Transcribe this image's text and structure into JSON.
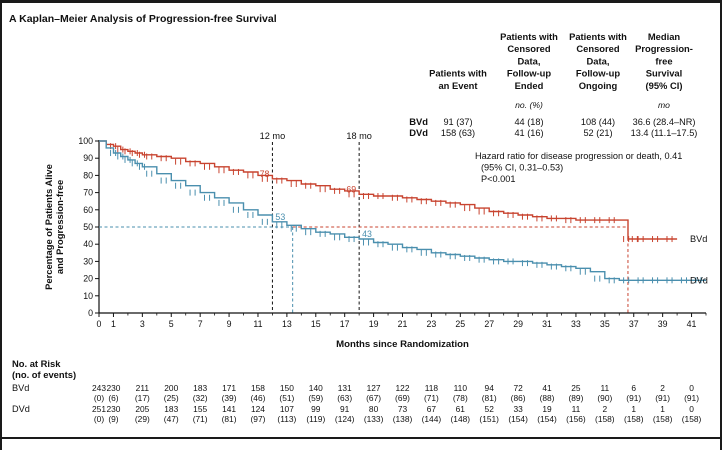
{
  "panel_title": "A  Kaplan–Meier Analysis of Progression-free Survival",
  "table": {
    "headers": [
      [
        "Patients with",
        "an Event"
      ],
      [
        "Patients with",
        "Censored",
        "Data,",
        "Follow-up",
        "Ended"
      ],
      [
        "Patients with",
        "Censored",
        "Data,",
        "Follow-up",
        "Ongoing"
      ],
      [
        "Median",
        "Progression-",
        "free",
        "Survival",
        "(95% CI)"
      ]
    ],
    "units": [
      "no. (%)",
      "mo"
    ],
    "rows": [
      {
        "label": "BVd",
        "event": "91 (37)",
        "ended": "44 (18)",
        "ongoing": "108 (44)",
        "median": "36.6 (28.4–NR)"
      },
      {
        "label": "DVd",
        "event": "158 (63)",
        "ended": "41 (16)",
        "ongoing": "52 (21)",
        "median": "13.4 (11.1–17.5)"
      }
    ]
  },
  "hazard_text": [
    "Hazard ratio for disease progression or death, 0.41",
    "(95% CI, 0.31–0.53)",
    "P<0.001"
  ],
  "colors": {
    "bvd": "#c8432f",
    "dvd": "#4a8fae"
  },
  "chart_data": {
    "type": "line",
    "xlabel": "Months since Randomization",
    "ylabel": [
      "Percentage of Patients Alive",
      "and Progression-free"
    ],
    "xlim": [
      0,
      42
    ],
    "ylim": [
      0,
      100
    ],
    "x_ticks": [
      0,
      1,
      3,
      5,
      7,
      9,
      11,
      13,
      15,
      17,
      19,
      21,
      23,
      25,
      27,
      29,
      31,
      33,
      35,
      37,
      39,
      41
    ],
    "y_ticks": [
      0,
      10,
      20,
      30,
      40,
      50,
      60,
      70,
      80,
      90,
      100
    ],
    "reference_lines": [
      {
        "x": 12,
        "label": "12 mo"
      },
      {
        "x": 18,
        "label": "18 mo"
      }
    ],
    "median_line_y": 50,
    "median_x": {
      "bvd": 36.6,
      "dvd": 13.4
    },
    "annotations": [
      {
        "x": 12,
        "y": 78,
        "text": "78",
        "series": "bvd"
      },
      {
        "x": 18,
        "y": 69,
        "text": "69",
        "series": "bvd"
      },
      {
        "x": 12,
        "y": 53,
        "text": "53",
        "series": "dvd"
      },
      {
        "x": 18,
        "y": 43,
        "text": "43",
        "series": "dvd"
      }
    ],
    "series": [
      {
        "name": "BVd",
        "key": "bvd",
        "x": [
          0,
          0.5,
          1,
          1.5,
          2,
          2.5,
          3,
          4,
          5,
          6,
          7,
          8,
          9,
          10,
          11,
          12,
          13,
          14,
          15,
          16,
          17,
          18,
          19,
          20,
          21,
          22,
          23,
          24,
          25,
          26,
          27,
          28,
          29,
          30,
          31,
          32,
          33,
          34,
          35,
          36,
          36.6,
          37,
          38,
          39,
          40
        ],
        "y": [
          100,
          98,
          97,
          95,
          94,
          93,
          92,
          91,
          90,
          88,
          87,
          85,
          83,
          82,
          80,
          78,
          77,
          75,
          74,
          72,
          71,
          69,
          68,
          68,
          67,
          66,
          65,
          64,
          63,
          61,
          59,
          58,
          57,
          56,
          55,
          55,
          54,
          54,
          54,
          54,
          43,
          43,
          43,
          43,
          43
        ]
      },
      {
        "name": "DVd",
        "key": "dvd",
        "x": [
          0,
          0.5,
          1,
          1.5,
          2,
          2.5,
          3,
          4,
          5,
          6,
          7,
          8,
          9,
          10,
          11,
          12,
          13,
          14,
          15,
          16,
          17,
          18,
          19,
          20,
          21,
          22,
          23,
          24,
          25,
          26,
          27,
          28,
          29,
          30,
          31,
          32,
          33,
          34,
          35,
          36,
          37,
          38,
          39,
          40,
          41,
          42
        ],
        "y": [
          100,
          96,
          93,
          91,
          89,
          87,
          85,
          81,
          77,
          74,
          70,
          67,
          64,
          60,
          57,
          53,
          51,
          49,
          47,
          46,
          44,
          43,
          41,
          40,
          38,
          37,
          35,
          34,
          33,
          32,
          31,
          30,
          30,
          29,
          28,
          27,
          26,
          24,
          20,
          19,
          19,
          19,
          19,
          19,
          19,
          19
        ]
      }
    ],
    "legend": [
      {
        "text": "BVd",
        "series": "bvd"
      },
      {
        "text": "DVd",
        "series": "dvd"
      }
    ]
  },
  "at_risk": {
    "title": [
      "No. at Risk",
      "(no. of events)"
    ],
    "times": [
      0,
      1,
      3,
      5,
      7,
      9,
      11,
      13,
      15,
      17,
      19,
      21,
      23,
      25,
      27,
      29,
      31,
      33,
      35,
      37,
      39,
      41
    ],
    "groups": [
      {
        "label": "BVd",
        "counts": [
          "243",
          "230",
          "211",
          "200",
          "183",
          "171",
          "158",
          "150",
          "140",
          "131",
          "127",
          "122",
          "118",
          "110",
          "94",
          "72",
          "41",
          "25",
          "11",
          "6",
          "2",
          "0"
        ],
        "events": [
          "(0)",
          "(6)",
          "(17)",
          "(25)",
          "(32)",
          "(39)",
          "(46)",
          "(51)",
          "(59)",
          "(63)",
          "(67)",
          "(69)",
          "(71)",
          "(78)",
          "(81)",
          "(86)",
          "(88)",
          "(89)",
          "(90)",
          "(91)",
          "(91)",
          "(91)"
        ]
      },
      {
        "label": "DVd",
        "counts": [
          "251",
          "230",
          "205",
          "183",
          "155",
          "141",
          "124",
          "107",
          "99",
          "91",
          "80",
          "73",
          "67",
          "61",
          "52",
          "33",
          "19",
          "11",
          "2",
          "1",
          "1",
          "0"
        ],
        "events": [
          "(0)",
          "(9)",
          "(29)",
          "(47)",
          "(71)",
          "(81)",
          "(97)",
          "(113)",
          "(119)",
          "(124)",
          "(133)",
          "(138)",
          "(144)",
          "(148)",
          "(151)",
          "(154)",
          "(154)",
          "(156)",
          "(158)",
          "(158)",
          "(158)",
          "(158)"
        ]
      }
    ]
  }
}
